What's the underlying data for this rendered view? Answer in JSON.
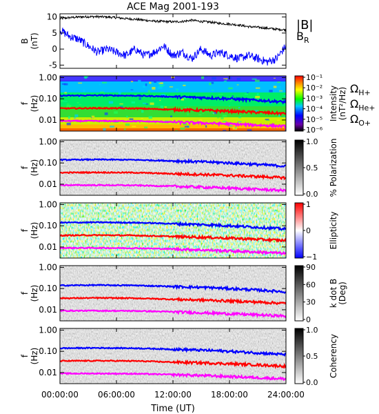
{
  "chart_data": {
    "title": "ACE Mag 2001-193",
    "xlabel": "Time (UT)",
    "x_ticks": [
      "00:00:00",
      "06:00:00",
      "12:00:00",
      "18:00:00",
      "24:00:00"
    ],
    "xlim_hours": [
      0,
      24
    ],
    "panels": [
      {
        "type": "line",
        "ylabel": "B",
        "yunit": "(nT)",
        "ylim": [
          -6,
          11
        ],
        "y_ticks": [
          "10",
          "5",
          "0",
          "-5"
        ],
        "series": [
          {
            "name": "|B|",
            "color": "#000000",
            "x": [
              0,
              1,
              2,
              3,
              4,
              5,
              6,
              7,
              8,
              9,
              10,
              11,
              12,
              13,
              14,
              15,
              16,
              17,
              18,
              19,
              20,
              21,
              22,
              23,
              24
            ],
            "y": [
              9.5,
              9.8,
              10.0,
              10.1,
              10.1,
              10.0,
              9.8,
              9.5,
              9.3,
              9.0,
              8.7,
              8.6,
              8.5,
              8.6,
              9.0,
              8.6,
              8.4,
              8.0,
              7.8,
              7.5,
              7.0,
              6.8,
              6.5,
              6.2,
              6.0
            ]
          },
          {
            "name": "B_R",
            "label_main": "B",
            "label_sub": "R",
            "color": "#0000ff",
            "x": [
              0,
              1,
              2,
              3,
              4,
              5,
              6,
              7,
              8,
              9,
              10,
              11,
              12,
              13,
              14,
              15,
              16,
              17,
              18,
              19,
              20,
              21,
              22,
              23,
              24
            ],
            "y": [
              6,
              4,
              3,
              1,
              -1,
              0,
              -1,
              -2,
              0,
              -2,
              -1,
              1,
              -2,
              -1,
              -3,
              0,
              -2,
              -1,
              -2,
              -3,
              -2,
              -3,
              -4,
              -3,
              1
            ]
          }
        ]
      },
      {
        "type": "heatmap",
        "ylabel": "f",
        "yunit": "(Hz)",
        "colorbar": {
          "label": "Intensity",
          "unit": "(nT²/Hz)",
          "ticks": [
            "10⁻¹",
            "10⁻²",
            "10⁻³",
            "10⁻⁴",
            "10⁻⁵",
            "10⁻⁶"
          ],
          "colormap": "rainbow"
        },
        "gyro_legend": [
          {
            "main": "Ω",
            "sub": "H+",
            "color": "#0000ff"
          },
          {
            "main": "Ω",
            "sub": "He+",
            "color": "#ff0000"
          },
          {
            "main": "Ω",
            "sub": "O+",
            "color": "#ff00ff"
          }
        ]
      },
      {
        "type": "heatmap",
        "ylabel": "f",
        "yunit": "(Hz)",
        "colorbar": {
          "label": "% Polarization",
          "unit": "",
          "ticks": [
            "1.0",
            "0.5",
            "0.0"
          ],
          "colormap": "gray"
        }
      },
      {
        "type": "heatmap",
        "ylabel": "f",
        "yunit": "(Hz)",
        "colorbar": {
          "label": "Ellipticity",
          "unit": "",
          "ticks": [
            "1",
            "0",
            "−1"
          ],
          "colormap": "bwr"
        }
      },
      {
        "type": "heatmap",
        "ylabel": "f",
        "yunit": "(Hz)",
        "colorbar": {
          "label": "k dot B",
          "unit": "(Deg)",
          "ticks": [
            "90",
            "60",
            "30",
            "0"
          ],
          "colormap": "gray"
        }
      },
      {
        "type": "heatmap",
        "ylabel": "f",
        "yunit": "(Hz)",
        "colorbar": {
          "label": "Coherency",
          "unit": "",
          "ticks": [
            "1.0",
            "0.5",
            "0.0"
          ],
          "colormap": "gray"
        }
      }
    ],
    "freq_axis": {
      "scale": "log",
      "ylim": [
        0.003,
        1.2
      ],
      "ticks": [
        "1.00",
        "0.10",
        "0.01"
      ]
    },
    "gyro_lines": [
      {
        "name": "H+",
        "color": "#0000ff",
        "hours": [
          0,
          4,
          8,
          12,
          16,
          20,
          24
        ],
        "freq": [
          0.14,
          0.145,
          0.14,
          0.125,
          0.11,
          0.09,
          0.07
        ]
      },
      {
        "name": "He+",
        "color": "#ff0000",
        "hours": [
          0,
          4,
          8,
          12,
          16,
          20,
          24
        ],
        "freq": [
          0.035,
          0.036,
          0.035,
          0.031,
          0.028,
          0.024,
          0.02
        ]
      },
      {
        "name": "O+",
        "color": "#ff00ff",
        "hours": [
          0,
          4,
          8,
          12,
          16,
          20,
          24
        ],
        "freq": [
          0.009,
          0.009,
          0.0088,
          0.008,
          0.007,
          0.006,
          0.005
        ]
      }
    ]
  }
}
